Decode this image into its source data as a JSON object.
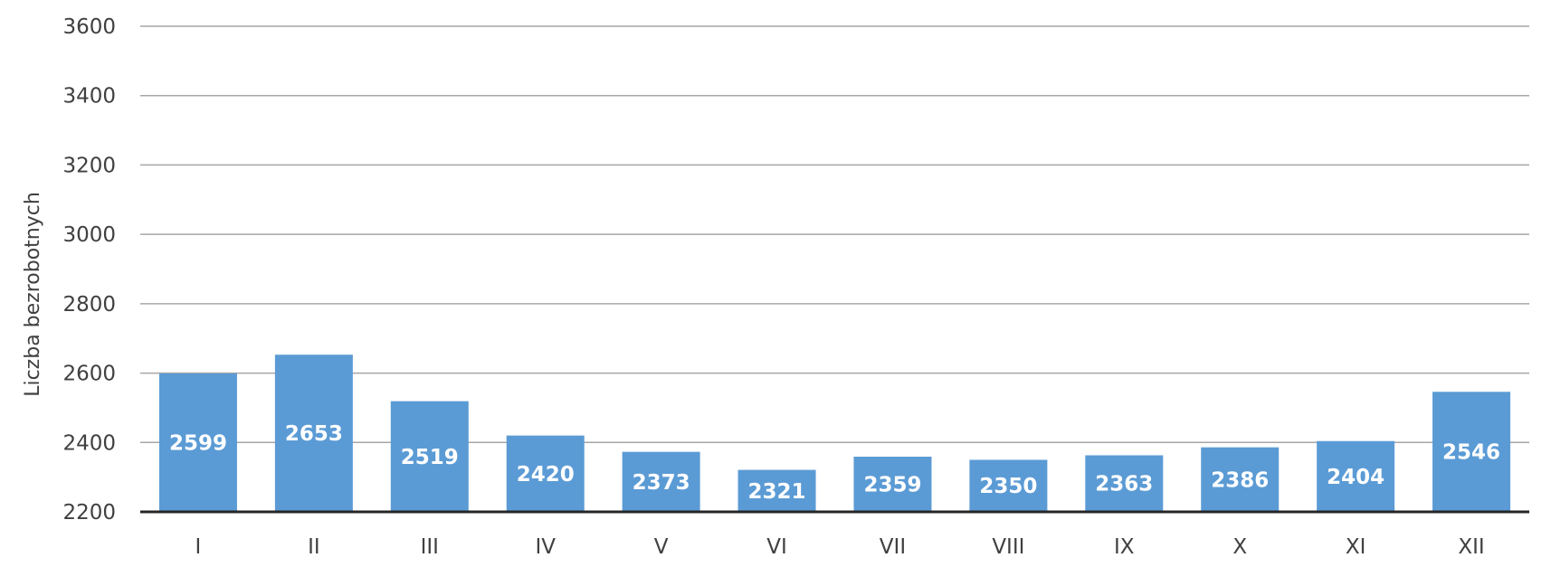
{
  "chart_data": {
    "type": "bar",
    "title": "",
    "xlabel": "",
    "ylabel": "Liczba bezrobotnych",
    "categories": [
      "I",
      "II",
      "III",
      "IV",
      "V",
      "VI",
      "VII",
      "VIII",
      "IX",
      "X",
      "XI",
      "XII"
    ],
    "values": [
      2599,
      2653,
      2519,
      2420,
      2373,
      2321,
      2359,
      2350,
      2363,
      2386,
      2404,
      2546
    ],
    "data_labels": [
      "2599",
      "2653",
      "2519",
      "2420",
      "2373",
      "2321",
      "2359",
      "2350",
      "2363",
      "2386",
      "2404",
      "2546"
    ],
    "ylim": [
      2200,
      3600
    ],
    "yticks": [
      2200,
      2400,
      2600,
      2800,
      3000,
      3200,
      3400,
      3600
    ],
    "ytick_labels": [
      "2200",
      "2400",
      "2600",
      "2800",
      "3000",
      "3200",
      "3400",
      "3600"
    ],
    "grid": true,
    "legend": "none",
    "bar_color": "#5b9bd5",
    "grid_color": "#a6a6a6",
    "axis_color": "#262626",
    "text_color": "#404040",
    "label_color": "#ffffff"
  }
}
